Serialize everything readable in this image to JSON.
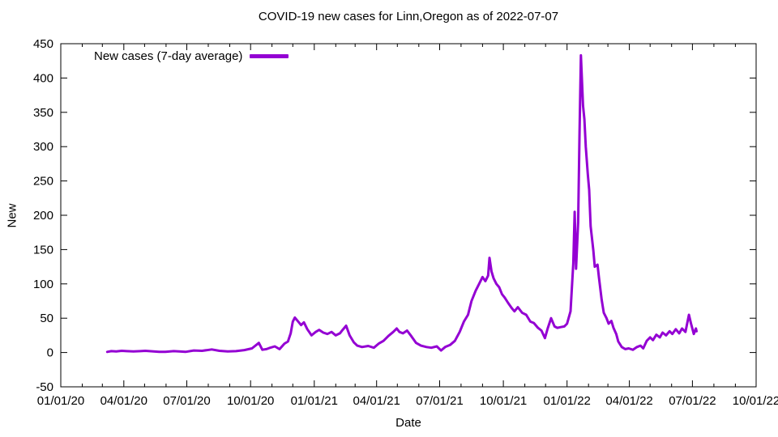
{
  "chart_data": {
    "type": "line",
    "title": "COVID-19 new cases for Linn,Oregon as of 2022-07-07",
    "xlabel": "Date",
    "ylabel": "New",
    "grid": false,
    "legend_position": "top-left-inside",
    "x_range": [
      "2020-01-01",
      "2022-10-01"
    ],
    "ylim": [
      -50,
      450
    ],
    "y_ticks": [
      -50,
      0,
      50,
      100,
      150,
      200,
      250,
      300,
      350,
      400,
      450
    ],
    "x_ticks": [
      {
        "date": "2020-01-01",
        "label": "01/01/20"
      },
      {
        "date": "2020-04-01",
        "label": "04/01/20"
      },
      {
        "date": "2020-07-01",
        "label": "07/01/20"
      },
      {
        "date": "2020-10-01",
        "label": "10/01/20"
      },
      {
        "date": "2021-01-01",
        "label": "01/01/21"
      },
      {
        "date": "2021-04-01",
        "label": "04/01/21"
      },
      {
        "date": "2021-07-01",
        "label": "07/01/21"
      },
      {
        "date": "2021-10-01",
        "label": "10/01/21"
      },
      {
        "date": "2022-01-01",
        "label": "01/01/22"
      },
      {
        "date": "2022-04-01",
        "label": "04/01/22"
      },
      {
        "date": "2022-07-01",
        "label": "07/01/22"
      },
      {
        "date": "2022-10-01",
        "label": "10/01/22"
      }
    ],
    "series": [
      {
        "name": "New cases (7-day average)",
        "color": "#9400d3",
        "points": [
          [
            "2020-03-08",
            1
          ],
          [
            "2020-03-14",
            2
          ],
          [
            "2020-03-21",
            1.5
          ],
          [
            "2020-03-29",
            2.5
          ],
          [
            "2020-04-05",
            2
          ],
          [
            "2020-04-15",
            1.5
          ],
          [
            "2020-04-25",
            2
          ],
          [
            "2020-05-02",
            2.5
          ],
          [
            "2020-05-14",
            1.5
          ],
          [
            "2020-05-22",
            1
          ],
          [
            "2020-05-31",
            1
          ],
          [
            "2020-06-12",
            2
          ],
          [
            "2020-06-20",
            1.5
          ],
          [
            "2020-06-29",
            1
          ],
          [
            "2020-07-11",
            3
          ],
          [
            "2020-07-23",
            2.5
          ],
          [
            "2020-08-06",
            4.5
          ],
          [
            "2020-08-17",
            2.5
          ],
          [
            "2020-08-29",
            1.5
          ],
          [
            "2020-09-10",
            2
          ],
          [
            "2020-09-22",
            3.5
          ],
          [
            "2020-10-03",
            6
          ],
          [
            "2020-10-13",
            14
          ],
          [
            "2020-10-18",
            4
          ],
          [
            "2020-10-24",
            5
          ],
          [
            "2020-10-28",
            6.5
          ],
          [
            "2020-11-05",
            9
          ],
          [
            "2020-11-12",
            5
          ],
          [
            "2020-11-19",
            13
          ],
          [
            "2020-11-24",
            16
          ],
          [
            "2020-11-28",
            28
          ],
          [
            "2020-12-01",
            45
          ],
          [
            "2020-12-04",
            51
          ],
          [
            "2020-12-08",
            46
          ],
          [
            "2020-12-13",
            40
          ],
          [
            "2020-12-17",
            44
          ],
          [
            "2020-12-22",
            34
          ],
          [
            "2020-12-28",
            25
          ],
          [
            "2021-01-03",
            30
          ],
          [
            "2021-01-08",
            33
          ],
          [
            "2021-01-14",
            29
          ],
          [
            "2021-01-20",
            27
          ],
          [
            "2021-01-26",
            30
          ],
          [
            "2021-02-01",
            25
          ],
          [
            "2021-02-07",
            28
          ],
          [
            "2021-02-11",
            33
          ],
          [
            "2021-02-16",
            39
          ],
          [
            "2021-02-21",
            25
          ],
          [
            "2021-02-27",
            15
          ],
          [
            "2021-03-04",
            10
          ],
          [
            "2021-03-11",
            8
          ],
          [
            "2021-03-20",
            9.5
          ],
          [
            "2021-03-28",
            7
          ],
          [
            "2021-04-04",
            13
          ],
          [
            "2021-04-11",
            17
          ],
          [
            "2021-04-18",
            24
          ],
          [
            "2021-04-25",
            30
          ],
          [
            "2021-04-30",
            35
          ],
          [
            "2021-05-04",
            30
          ],
          [
            "2021-05-09",
            28
          ],
          [
            "2021-05-15",
            32
          ],
          [
            "2021-05-21",
            24
          ],
          [
            "2021-05-28",
            14
          ],
          [
            "2021-06-04",
            10
          ],
          [
            "2021-06-12",
            8
          ],
          [
            "2021-06-19",
            7
          ],
          [
            "2021-06-27",
            9
          ],
          [
            "2021-07-03",
            3
          ],
          [
            "2021-07-09",
            8
          ],
          [
            "2021-07-16",
            11
          ],
          [
            "2021-07-23",
            17
          ],
          [
            "2021-07-30",
            30
          ],
          [
            "2021-08-05",
            45
          ],
          [
            "2021-08-11",
            55
          ],
          [
            "2021-08-16",
            75
          ],
          [
            "2021-08-22",
            90
          ],
          [
            "2021-08-27",
            100
          ],
          [
            "2021-09-01",
            110
          ],
          [
            "2021-09-05",
            104
          ],
          [
            "2021-09-09",
            112
          ],
          [
            "2021-09-11",
            138
          ],
          [
            "2021-09-14",
            118
          ],
          [
            "2021-09-17",
            108
          ],
          [
            "2021-09-21",
            100
          ],
          [
            "2021-09-25",
            95
          ],
          [
            "2021-09-29",
            85
          ],
          [
            "2021-10-03",
            80
          ],
          [
            "2021-10-08",
            72
          ],
          [
            "2021-10-13",
            65
          ],
          [
            "2021-10-17",
            60
          ],
          [
            "2021-10-22",
            66
          ],
          [
            "2021-10-28",
            58
          ],
          [
            "2021-11-03",
            55
          ],
          [
            "2021-11-09",
            45
          ],
          [
            "2021-11-14",
            43
          ],
          [
            "2021-11-20",
            36
          ],
          [
            "2021-11-25",
            32
          ],
          [
            "2021-11-30",
            21
          ],
          [
            "2021-12-04",
            35
          ],
          [
            "2021-12-09",
            50
          ],
          [
            "2021-12-14",
            38
          ],
          [
            "2021-12-18",
            36
          ],
          [
            "2021-12-23",
            37
          ],
          [
            "2021-12-28",
            38
          ],
          [
            "2022-01-01",
            42
          ],
          [
            "2022-01-06",
            60
          ],
          [
            "2022-01-10",
            130
          ],
          [
            "2022-01-12",
            205
          ],
          [
            "2022-01-14",
            122
          ],
          [
            "2022-01-17",
            190
          ],
          [
            "2022-01-19",
            320
          ],
          [
            "2022-01-21",
            433
          ],
          [
            "2022-01-24",
            360
          ],
          [
            "2022-01-26",
            340
          ],
          [
            "2022-01-28",
            300
          ],
          [
            "2022-01-31",
            260
          ],
          [
            "2022-02-02",
            237
          ],
          [
            "2022-02-04",
            184
          ],
          [
            "2022-02-08",
            148
          ],
          [
            "2022-02-10",
            125
          ],
          [
            "2022-02-14",
            128
          ],
          [
            "2022-02-16",
            110
          ],
          [
            "2022-02-20",
            77
          ],
          [
            "2022-02-23",
            58
          ],
          [
            "2022-02-27",
            50
          ],
          [
            "2022-03-02",
            42
          ],
          [
            "2022-03-06",
            46
          ],
          [
            "2022-03-09",
            36
          ],
          [
            "2022-03-13",
            27
          ],
          [
            "2022-03-16",
            16
          ],
          [
            "2022-03-21",
            8
          ],
          [
            "2022-03-26",
            5
          ],
          [
            "2022-03-31",
            6
          ],
          [
            "2022-04-06",
            4
          ],
          [
            "2022-04-12",
            8
          ],
          [
            "2022-04-17",
            10
          ],
          [
            "2022-04-21",
            6
          ],
          [
            "2022-04-26",
            17
          ],
          [
            "2022-05-01",
            22
          ],
          [
            "2022-05-05",
            18
          ],
          [
            "2022-05-10",
            26
          ],
          [
            "2022-05-15",
            22
          ],
          [
            "2022-05-19",
            29
          ],
          [
            "2022-05-24",
            25
          ],
          [
            "2022-05-29",
            31
          ],
          [
            "2022-06-02",
            27
          ],
          [
            "2022-06-07",
            34
          ],
          [
            "2022-06-12",
            28
          ],
          [
            "2022-06-16",
            35
          ],
          [
            "2022-06-21",
            30
          ],
          [
            "2022-06-26",
            55
          ],
          [
            "2022-06-29",
            42
          ],
          [
            "2022-07-03",
            27
          ],
          [
            "2022-07-06",
            35
          ],
          [
            "2022-07-07",
            31
          ]
        ]
      }
    ]
  }
}
